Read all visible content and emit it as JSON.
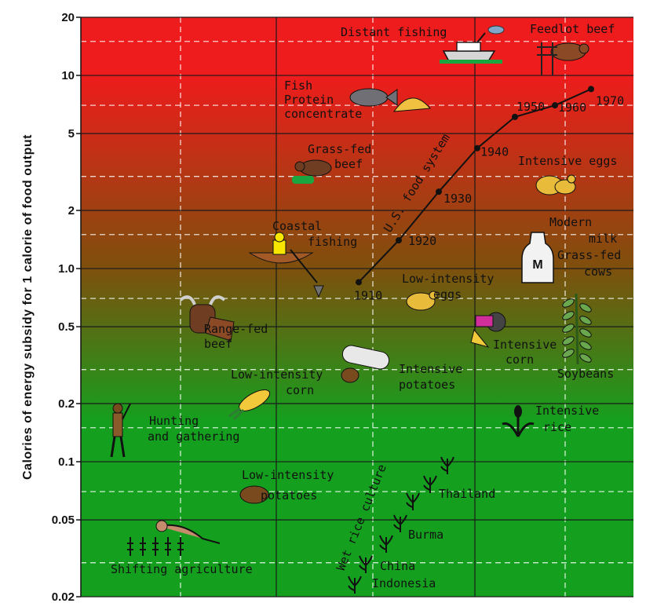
{
  "chart_data": {
    "type": "scatter",
    "title": "",
    "xlabel": "",
    "ylabel": "Calories of energy subsidy for 1 calorie of food output",
    "yscale": "log",
    "ylim": [
      0.02,
      20
    ],
    "yticks": [
      0.02,
      0.05,
      0.1,
      0.2,
      0.5,
      1.0,
      2,
      5,
      10,
      20
    ],
    "ytick_labels": [
      "0.02",
      "0.05",
      "0.1",
      "0.2",
      "0.5",
      "1.0",
      "2",
      "5",
      "10",
      "20"
    ],
    "background": {
      "top_color": "#ee1c1c",
      "middle_color": "#7f4f0d",
      "bottom_color": "#14a01e"
    },
    "series": [
      {
        "name": "U.S. food system",
        "points": [
          {
            "year": "1910",
            "y": 0.85
          },
          {
            "year": "1920",
            "y": 1.4
          },
          {
            "year": "1930",
            "y": 2.5
          },
          {
            "year": "1940",
            "y": 4.2
          },
          {
            "year": "1950",
            "y": 6.1
          },
          {
            "year": "1960",
            "y": 7.0
          },
          {
            "year": "1970",
            "y": 8.5
          }
        ]
      }
    ],
    "annotations": [
      {
        "id": "distant-fishing",
        "lines": [
          "Distant fishing"
        ],
        "y": 18,
        "icon": "fishing-boat-icon"
      },
      {
        "id": "feedlot-beef",
        "lines": [
          "Feedlot beef"
        ],
        "y": 18,
        "icon": "cow-icon"
      },
      {
        "id": "fish-protein",
        "lines": [
          "Fish",
          "Protein",
          "concentrate"
        ],
        "y": 8,
        "icon": "fish-icon"
      },
      {
        "id": "grass-fed-beef",
        "lines": [
          "Grass-fed",
          "beef"
        ],
        "y": 3.5,
        "icon": "cow-icon"
      },
      {
        "id": "intensive-eggs",
        "lines": [
          "Intensive eggs"
        ],
        "y": 3.6,
        "icon": "chicken-icon"
      },
      {
        "id": "coastal-fishing",
        "lines": [
          "Coastal",
          "fishing"
        ],
        "y": 1.5,
        "icon": "rowboat-icon"
      },
      {
        "id": "modern-milk",
        "lines": [
          "Modern",
          "milk",
          "Grass-fed",
          "cows"
        ],
        "y": 1.3,
        "icon": "milk-bottle-icon"
      },
      {
        "id": "low-intensity-eggs",
        "lines": [
          "Low-intensity",
          "eggs"
        ],
        "y": 0.9,
        "icon": "chicken-icon"
      },
      {
        "id": "range-fed-beef",
        "lines": [
          "Range-fed",
          "beef"
        ],
        "y": 0.45,
        "icon": "steer-icon"
      },
      {
        "id": "intensive-corn",
        "lines": [
          "Intensive",
          "corn"
        ],
        "y": 0.4,
        "icon": "tractor-icon"
      },
      {
        "id": "soybeans",
        "lines": [
          "Soybeans"
        ],
        "y": 0.3,
        "icon": "soybean-plant-icon"
      },
      {
        "id": "intensive-potatoes",
        "lines": [
          "Intensive",
          "potatoes"
        ],
        "y": 0.3,
        "icon": "potato-icon"
      },
      {
        "id": "low-intensity-corn",
        "lines": [
          "Low-intensity",
          "corn"
        ],
        "y": 0.27,
        "icon": "corn-icon"
      },
      {
        "id": "intensive-rice",
        "lines": [
          "Intensive",
          "rice"
        ],
        "y": 0.17,
        "icon": "rice-plant-icon"
      },
      {
        "id": "hunting-gathering",
        "lines": [
          "Hunting",
          "and gathering"
        ],
        "y": 0.15,
        "icon": "hunter-icon"
      },
      {
        "id": "low-intensity-potatoes",
        "lines": [
          "Low-intensity",
          "potatoes"
        ],
        "y": 0.07,
        "icon": "potato-icon"
      },
      {
        "id": "thailand",
        "lines": [
          "Thailand"
        ],
        "y": 0.075,
        "icon": "rice-sprout-icon"
      },
      {
        "id": "burma",
        "lines": [
          "Burma"
        ],
        "y": 0.04,
        "icon": "rice-sprout-icon"
      },
      {
        "id": "shifting-agriculture",
        "lines": [
          "Shifting agriculture"
        ],
        "y": 0.035,
        "icon": "farmer-icon"
      },
      {
        "id": "china",
        "lines": [
          "China"
        ],
        "y": 0.025,
        "icon": "rice-sprout-icon"
      },
      {
        "id": "indonesia",
        "lines": [
          "Indonesia"
        ],
        "y": 0.022,
        "icon": "rice-sprout-icon"
      }
    ],
    "rotated_labels": [
      {
        "id": "us-food-system",
        "text": "U.S. food system"
      },
      {
        "id": "wet-rice-culture",
        "text": "Wet rice culture"
      }
    ],
    "grid": true,
    "legend": "none"
  }
}
